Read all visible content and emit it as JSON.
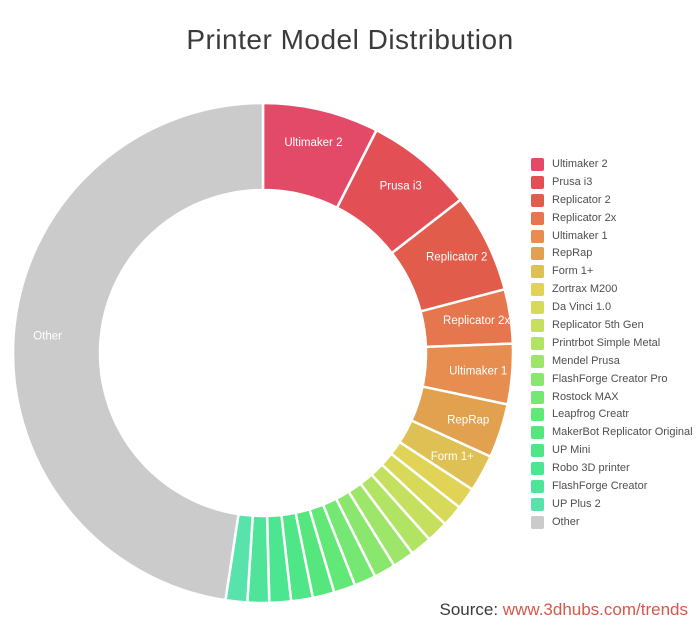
{
  "page": {
    "title": "Printer Model Distribution",
    "source": {
      "prefix": "Source: ",
      "link": "www.3dhubs.com/trends"
    }
  },
  "colors": {
    "background": "#ffffff",
    "title_text": "#3b3b3b",
    "legend_text": "#4f4f4f",
    "source_text": "#3a3a3a",
    "source_link": "#d8574a",
    "slice_label_text": "#ffffff",
    "slice_border": "#ffffff"
  },
  "chart_data": {
    "type": "pie",
    "subtype": "donut",
    "title": "Printer Model Distribution",
    "unit": "percent",
    "start_angle_deg": 0,
    "direction": "clockwise",
    "legend_position": "right",
    "series": [
      {
        "label": "Ultimaker 2",
        "value": 7.5,
        "color": "#e24a68",
        "slice_label": true
      },
      {
        "label": "Prusa i3",
        "value": 7.0,
        "color": "#e24f55",
        "slice_label": true
      },
      {
        "label": "Replicator 2",
        "value": 6.4,
        "color": "#e25c4b",
        "slice_label": true
      },
      {
        "label": "Replicator 2x",
        "value": 3.5,
        "color": "#e5764d",
        "slice_label": true
      },
      {
        "label": "Ultimaker 1",
        "value": 3.9,
        "color": "#e68d4f",
        "slice_label": true
      },
      {
        "label": "RepRap",
        "value": 3.5,
        "color": "#e2a14f",
        "slice_label": true
      },
      {
        "label": "Form 1+",
        "value": 2.4,
        "color": "#dfc055",
        "slice_label": true
      },
      {
        "label": "Zortrax M200",
        "value": 1.4,
        "color": "#e0d355",
        "slice_label": false
      },
      {
        "label": "Da Vinci 1.0",
        "value": 1.4,
        "color": "#d6da58",
        "slice_label": false
      },
      {
        "label": "Replicator 5th Gen",
        "value": 1.4,
        "color": "#c4e05e",
        "slice_label": false
      },
      {
        "label": "Printrbot Simple Metal",
        "value": 1.4,
        "color": "#b2e463",
        "slice_label": false
      },
      {
        "label": "Mendel Prusa",
        "value": 1.4,
        "color": "#9de66a",
        "slice_label": false
      },
      {
        "label": "FlashForge Creator Pro",
        "value": 1.4,
        "color": "#89e76d",
        "slice_label": false
      },
      {
        "label": "Rostock MAX",
        "value": 1.4,
        "color": "#75e873",
        "slice_label": false
      },
      {
        "label": "Leapfrog Creatr",
        "value": 1.4,
        "color": "#62e877",
        "slice_label": false
      },
      {
        "label": "MakerBot Replicator Original",
        "value": 1.4,
        "color": "#55e77e",
        "slice_label": false
      },
      {
        "label": "UP Mini",
        "value": 1.4,
        "color": "#4ee687",
        "slice_label": false
      },
      {
        "label": "Robo 3D printer",
        "value": 1.4,
        "color": "#4ce590",
        "slice_label": false
      },
      {
        "label": "FlashForge Creator",
        "value": 1.4,
        "color": "#50e49b",
        "slice_label": false
      },
      {
        "label": "UP Plus 2",
        "value": 1.4,
        "color": "#57e3ab",
        "slice_label": false
      },
      {
        "label": "Other",
        "value": 47.6,
        "color": "#cbcbcb",
        "slice_label": true
      }
    ]
  }
}
